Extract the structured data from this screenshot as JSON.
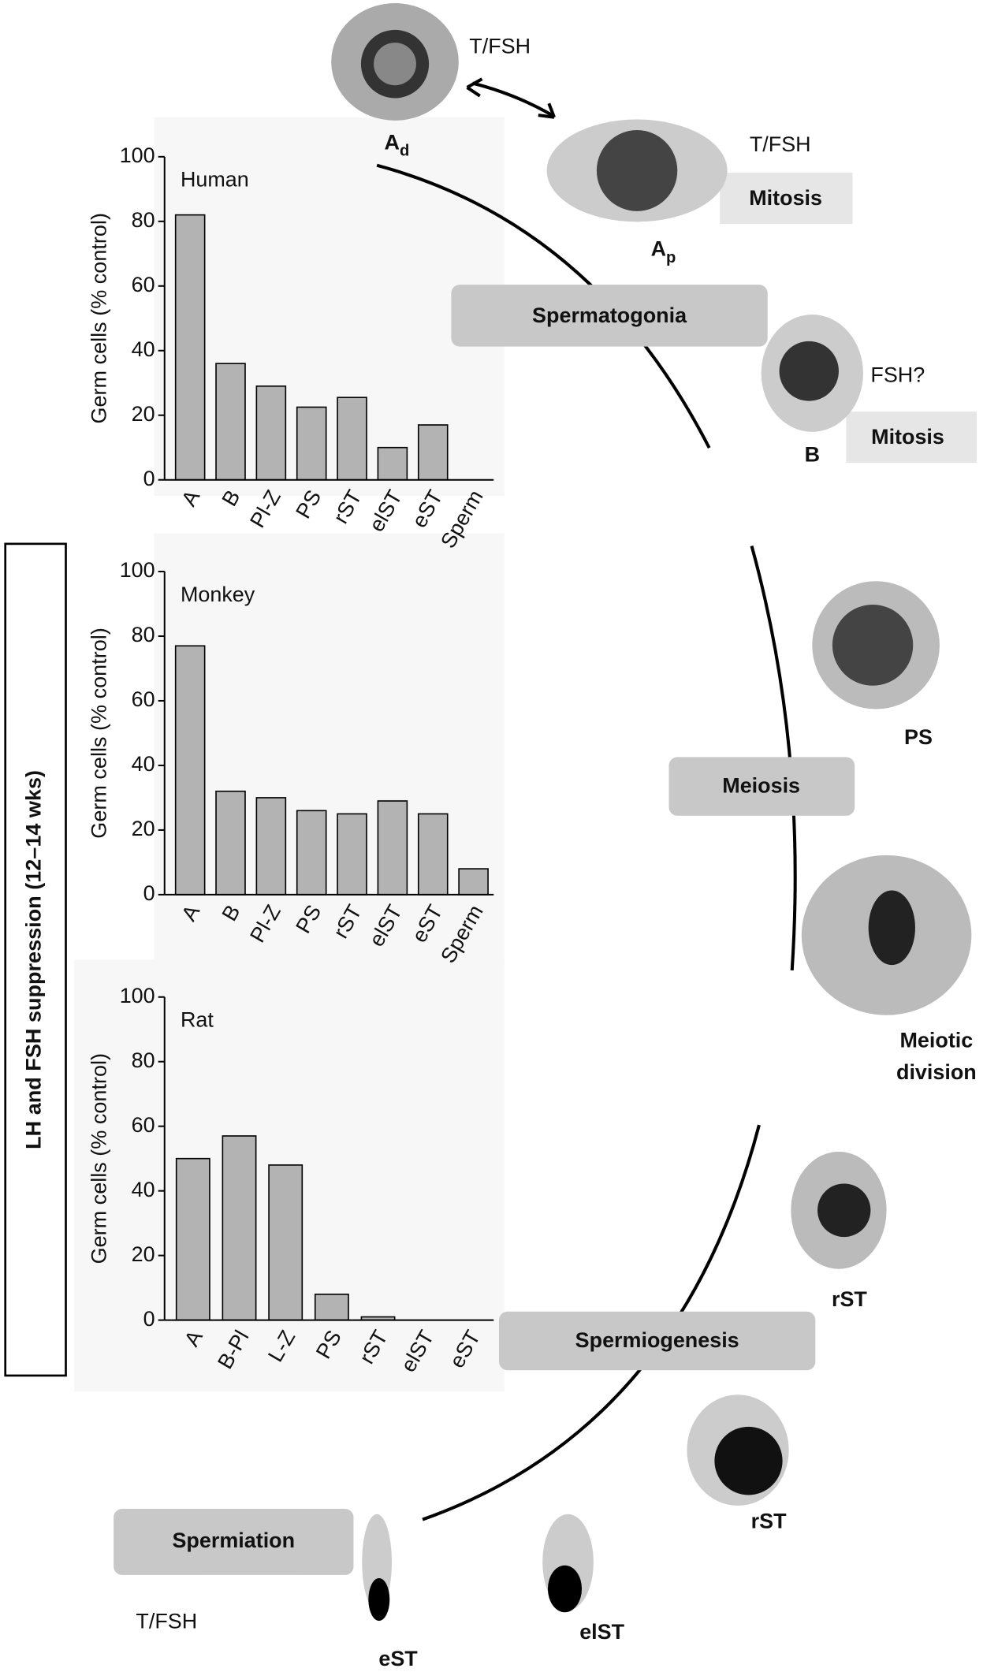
{
  "chart_data": [
    {
      "type": "bar",
      "title": "Human",
      "ylabel": "Germ cells (% control)",
      "categories": [
        "A",
        "B",
        "Pl-Z",
        "PS",
        "rST",
        "elST",
        "eST",
        "Sperm"
      ],
      "values": [
        82,
        36,
        29,
        22.5,
        25.5,
        10,
        17,
        0
      ],
      "color": "#b3b3b3",
      "ylim": [
        0,
        100
      ],
      "yticks": [
        0,
        20,
        40,
        60,
        80,
        100
      ]
    },
    {
      "type": "bar",
      "title": "Monkey",
      "ylabel": "Germ cells (% control)",
      "categories": [
        "A",
        "B",
        "Pl-Z",
        "PS",
        "rST",
        "elST",
        "eST",
        "Sperm"
      ],
      "values": [
        77,
        32,
        30,
        26,
        25,
        29,
        25,
        8
      ],
      "color": "#b3b3b3",
      "ylim": [
        0,
        100
      ],
      "yticks": [
        0,
        20,
        40,
        60,
        80,
        100
      ]
    },
    {
      "type": "bar",
      "title": "Rat",
      "ylabel": "Germ cells (% control)",
      "categories": [
        "A",
        "B-Pl",
        "L-Z",
        "PS",
        "rST",
        "elST",
        "eST"
      ],
      "values": [
        50,
        57,
        48,
        8,
        1,
        0,
        0
      ],
      "color": "#b3b3b3",
      "ylim": [
        0,
        100
      ],
      "yticks": [
        0,
        20,
        40,
        60,
        80,
        100
      ]
    }
  ],
  "diagram": {
    "side_label": "LH and FSH suppression (12–14 wks)",
    "stages": [
      "Spermatogonia",
      "Meiosis",
      "Spermiogenesis",
      "Spermiation"
    ],
    "mitosis": [
      "Mitosis",
      "Mitosis"
    ],
    "hormones": [
      "T/FSH",
      "T/FSH",
      "FSH?",
      "T/FSH"
    ],
    "cells": [
      {
        "label": "A",
        "sub": "d"
      },
      {
        "label": "A",
        "sub": "p"
      },
      {
        "label": "B"
      },
      {
        "label": "PS"
      },
      {
        "label": "Meiotic",
        "line2": "division"
      },
      {
        "label": "rST"
      },
      {
        "label": "rST"
      },
      {
        "label": "elST"
      },
      {
        "label": "eST"
      }
    ]
  }
}
